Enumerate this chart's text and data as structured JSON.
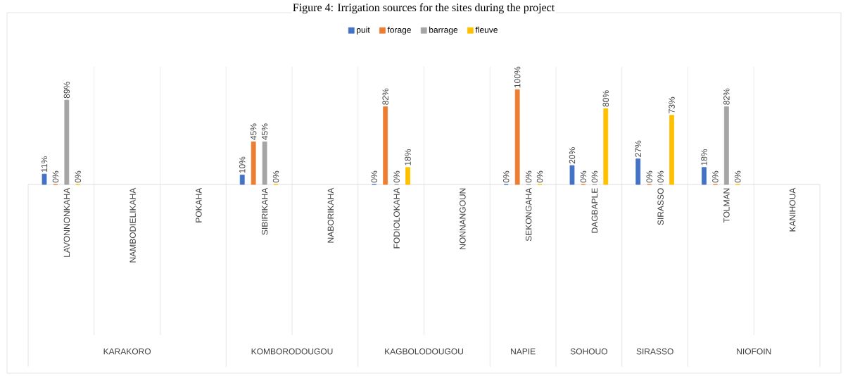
{
  "chart_data": {
    "type": "bar",
    "title": "Figure 4: Irrigation sources for the sites during the project",
    "categories": [
      "LAVONNONKAHA",
      "NAMBODIELIKAHA",
      "POKAHA",
      "SIBIRIKAHA",
      "NABORIKAHA",
      "FODIOLOKAHA",
      "NONNANGOUN",
      "SEKONGAHA",
      "DAGBAPLE",
      "SIRASSO",
      "TOLMAN",
      "KANIHOUA"
    ],
    "series": [
      {
        "name": "puit",
        "color": "#4472c4",
        "values": [
          11,
          null,
          null,
          10,
          null,
          0,
          null,
          0,
          20,
          27,
          18,
          null
        ],
        "value_labels": [
          "11%",
          null,
          null,
          "10%",
          null,
          "0%",
          null,
          "0%",
          "20%",
          "27%",
          "18%",
          null
        ]
      },
      {
        "name": "forage",
        "color": "#ed7d31",
        "values": [
          0,
          null,
          null,
          45,
          null,
          82,
          null,
          100,
          0,
          0,
          0,
          null
        ],
        "value_labels": [
          "0%",
          null,
          null,
          "45%",
          null,
          "82%",
          null,
          "100%",
          "0%",
          "0%",
          "0%",
          null
        ]
      },
      {
        "name": "barrage",
        "color": "#a5a5a5",
        "values": [
          89,
          null,
          null,
          45,
          null,
          0,
          null,
          0,
          0,
          0,
          82,
          null
        ],
        "value_labels": [
          "89%",
          null,
          null,
          "45%",
          null,
          "0%",
          null,
          "0%",
          "0%",
          "0%",
          "82%",
          null
        ]
      },
      {
        "name": "fleuve",
        "color": "#ffc000",
        "values": [
          0,
          null,
          null,
          0,
          null,
          18,
          null,
          0,
          80,
          73,
          0,
          null
        ],
        "value_labels": [
          "0%",
          null,
          null,
          "0%",
          null,
          "18%",
          null,
          "0%",
          "80%",
          "73%",
          "0%",
          null
        ]
      }
    ],
    "annotations": [
      "KARAKORO",
      "KOMBORODOUGOU",
      "KAGBOLODOUGOU",
      "NAPIE",
      "SOHOUO",
      "SIRASSO",
      "NIOFOIN"
    ],
    "legend": "top",
    "grid": "x"
  }
}
